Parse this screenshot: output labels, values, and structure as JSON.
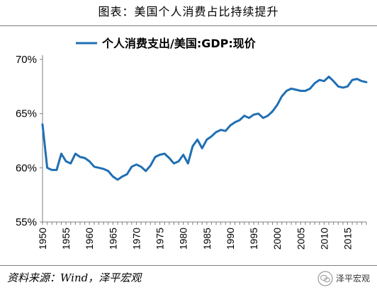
{
  "title": "图表：美国个人消费占比持续提升",
  "source": "资料来源：Wind，泽平宏观",
  "watermark": "泽平宏观",
  "colors": {
    "line": "#1f6fb4",
    "axis": "#7f7f7f"
  },
  "chart_data": {
    "type": "line",
    "title": "",
    "xlabel": "",
    "ylabel": "",
    "ylim": [
      55,
      70
    ],
    "xlim": [
      1950,
      2019
    ],
    "y_ticks": [
      "55%",
      "60%",
      "65%",
      "70%"
    ],
    "y_tick_values": [
      55,
      60,
      65,
      70
    ],
    "x_ticks": [
      "1950",
      "1955",
      "1960",
      "1965",
      "1970",
      "1975",
      "1980",
      "1985",
      "1990",
      "1995",
      "2000",
      "2005",
      "2010",
      "2015"
    ],
    "x_tick_values": [
      1950,
      1955,
      1960,
      1965,
      1970,
      1975,
      1980,
      1985,
      1990,
      1995,
      2000,
      2005,
      2010,
      2015
    ],
    "legend_position": "top",
    "grid": false,
    "series": [
      {
        "name": "个人消费支出/美国:GDP:现价",
        "x": [
          1950,
          1951,
          1952,
          1953,
          1954,
          1955,
          1956,
          1957,
          1958,
          1959,
          1960,
          1961,
          1962,
          1963,
          1964,
          1965,
          1966,
          1967,
          1968,
          1969,
          1970,
          1971,
          1972,
          1973,
          1974,
          1975,
          1976,
          1977,
          1978,
          1979,
          1980,
          1981,
          1982,
          1983,
          1984,
          1985,
          1986,
          1987,
          1988,
          1989,
          1990,
          1991,
          1992,
          1993,
          1994,
          1995,
          1996,
          1997,
          1998,
          1999,
          2000,
          2001,
          2002,
          2003,
          2004,
          2005,
          2006,
          2007,
          2008,
          2009,
          2010,
          2011,
          2012,
          2013,
          2014,
          2015,
          2016,
          2017,
          2018,
          2019
        ],
        "values": [
          64.0,
          60.0,
          59.8,
          59.8,
          61.3,
          60.6,
          60.4,
          61.3,
          61.0,
          60.9,
          60.6,
          60.1,
          60.0,
          59.9,
          59.7,
          59.2,
          58.9,
          59.2,
          59.4,
          60.1,
          60.3,
          60.1,
          59.7,
          60.2,
          61.0,
          61.2,
          61.3,
          60.9,
          60.4,
          60.6,
          61.2,
          60.4,
          62.0,
          62.6,
          61.8,
          62.6,
          62.9,
          63.3,
          63.5,
          63.4,
          63.9,
          64.2,
          64.4,
          64.8,
          64.6,
          64.9,
          65.0,
          64.6,
          64.8,
          65.2,
          65.8,
          66.6,
          67.1,
          67.3,
          67.2,
          67.1,
          67.1,
          67.3,
          67.8,
          68.1,
          68.0,
          68.4,
          68.0,
          67.5,
          67.4,
          67.5,
          68.1,
          68.2,
          68.0,
          67.9
        ]
      }
    ]
  }
}
